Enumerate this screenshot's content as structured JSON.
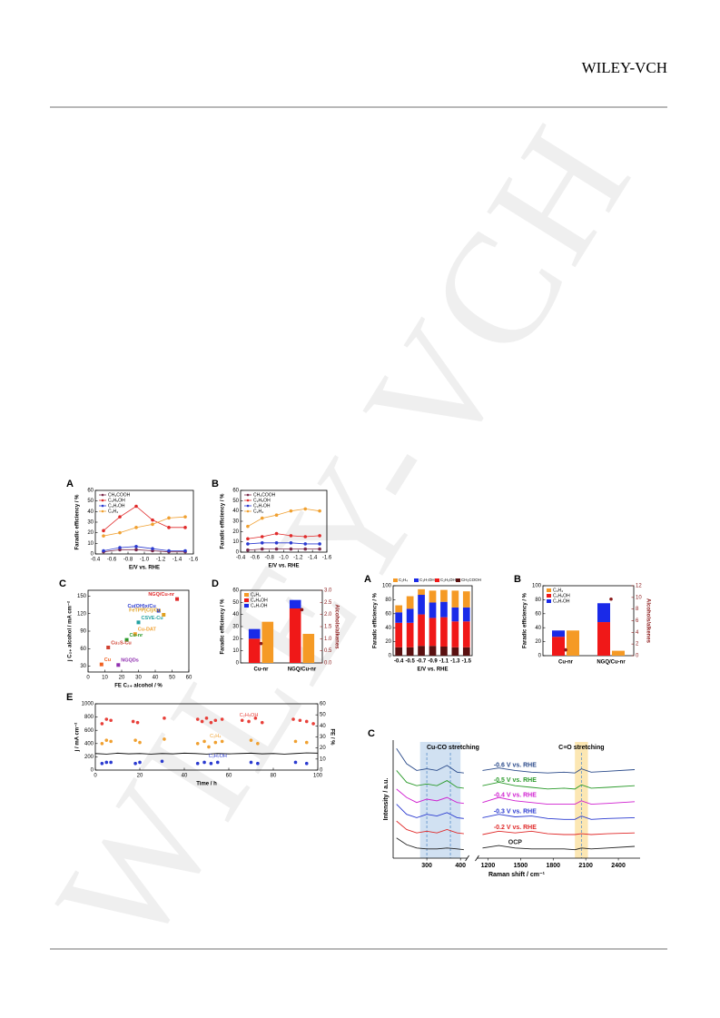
{
  "header": {
    "publisher": "WILEY-VCH"
  },
  "watermark": "WILEY-VCH",
  "chart_data": [
    {
      "panel": "A",
      "type": "line",
      "xlabel": "E/V vs. RHE",
      "ylabel": "Faradic efficiency / %",
      "xlim": [
        -0.4,
        -1.6
      ],
      "xticks": [
        -0.4,
        -0.6,
        -0.8,
        {
          "value": -1,
          "label": "-1.0"
        },
        -1.2,
        -1.4,
        -1.6
      ],
      "ylim": [
        0,
        60
      ],
      "yticks": [
        0,
        10,
        20,
        30,
        40,
        50,
        60
      ],
      "legend": "upper left",
      "x": [
        -0.5,
        -0.7,
        -0.9,
        -1.1,
        -1.3,
        -1.5
      ],
      "series": [
        {
          "name": "CH₃COOH",
          "color": "#7a2a4a",
          "style": "line-markers",
          "values": [
            2,
            4,
            4,
            3,
            2,
            2
          ]
        },
        {
          "name": "C₂H₅OH",
          "color": "#e02a2a",
          "style": "line-markers",
          "values": [
            22,
            35,
            45,
            32,
            25,
            25
          ]
        },
        {
          "name": "C₃H₇OH",
          "color": "#2a3ad0",
          "style": "line-markers",
          "values": [
            3,
            6,
            7,
            5,
            3,
            3
          ]
        },
        {
          "name": "C₂H₄",
          "color": "#f0a030",
          "style": "line-markers",
          "values": [
            17,
            20,
            25,
            28,
            34,
            35
          ]
        }
      ]
    },
    {
      "panel": "B",
      "type": "line",
      "xlabel": "E/V vs. RHE",
      "ylabel": "Faradic efficiency / %",
      "xlim": [
        -0.4,
        -1.6
      ],
      "xticks": [
        -0.4,
        -0.6,
        -0.8,
        {
          "value": -1,
          "label": "-1.0"
        },
        -1.2,
        -1.4,
        -1.6
      ],
      "ylim": [
        0,
        60
      ],
      "yticks": [
        0,
        10,
        20,
        30,
        40,
        50,
        60
      ],
      "legend": "upper left",
      "x": [
        -0.5,
        -0.7,
        -0.9,
        -1.1,
        -1.3,
        -1.5
      ],
      "series": [
        {
          "name": "CH₃COOH",
          "color": "#7a2a4a",
          "style": "line-markers",
          "values": [
            2,
            3,
            3,
            3,
            3,
            3
          ]
        },
        {
          "name": "C₂H₅OH",
          "color": "#e02a2a",
          "style": "line-markers",
          "values": [
            13,
            15,
            18,
            16,
            15,
            16
          ]
        },
        {
          "name": "C₃H₇OH",
          "color": "#2a3ad0",
          "style": "line-markers",
          "values": [
            8,
            9,
            9,
            9,
            8,
            8
          ]
        },
        {
          "name": "C₂H₄",
          "color": "#f0a030",
          "style": "line-markers",
          "values": [
            25,
            33,
            36,
            40,
            42,
            40
          ]
        }
      ]
    },
    {
      "panel": "C",
      "type": "scatter",
      "xlabel": "FE C₂₊ alcohol / %",
      "ylabel": "j C₂₊ alcohol / mA cm⁻²",
      "xlim": [
        0,
        60
      ],
      "xticks": [
        0,
        10,
        20,
        30,
        40,
        50,
        60
      ],
      "ylim": [
        20,
        160
      ],
      "yticks": [
        30,
        60,
        90,
        120,
        150
      ],
      "x": [
        53,
        42,
        45,
        30,
        28,
        23,
        12,
        8,
        18
      ],
      "values": [
        145,
        125,
        118,
        105,
        85,
        75,
        62,
        33,
        32
      ],
      "point_labels": [
        "NGQ/Cu-nr",
        "Cu(OH)x/Cu",
        "FeTPP[Cl]/Cu",
        "CSVE-Cu",
        "Cu-DAT",
        "Cu-nr",
        "Cu₂S-Cu",
        "Cu",
        "NGQDs"
      ],
      "colors": [
        "#e02a2a",
        "#2a3ad0",
        "#e0a020",
        "#20a0a0",
        "#f0a030",
        "#2a9a2a",
        "#d04030",
        "#f06020",
        "#9030b0"
      ]
    },
    {
      "panel": "D",
      "type": "bar",
      "ylabel": "Faradic efficiency / %",
      "y2label": "Alcohols/alkenes",
      "y2color": "#8b1a1a",
      "categories": [
        "Cu-nr",
        "NGQ/Cu-nr"
      ],
      "ylim": [
        0,
        60
      ],
      "yticks": [
        0,
        10,
        20,
        30,
        40,
        50,
        60
      ],
      "y2lim": [
        0,
        3
      ],
      "y2ticks": [
        {
          "value": 0,
          "label": "0.0"
        },
        0.5,
        {
          "value": 1,
          "label": "1.0"
        },
        1.5,
        {
          "value": 2,
          "label": "2.0"
        },
        2.5,
        {
          "value": 3,
          "label": "3.0"
        }
      ],
      "series": [
        {
          "name": "C₂H₄",
          "color": "#f59a25",
          "bar_group": 1,
          "values": [
            34,
            24
          ]
        },
        {
          "name": "C₂H₅OH",
          "color": "#f01818",
          "bar_group": 0,
          "values": [
            20,
            45
          ]
        },
        {
          "name": "C₃H₇OH",
          "color": "#1a2ae8",
          "bar_group": 0,
          "values": [
            8,
            7
          ]
        },
        {
          "color": "#8b1a1a",
          "axis": "y2",
          "values": [
            0.8,
            2.2
          ]
        }
      ]
    },
    {
      "panel": "E",
      "type": "line",
      "xlabel": "Time / h",
      "ylabel": "j / mA cm⁻²",
      "y2label": "FE / %",
      "xlim": [
        0,
        100
      ],
      "xticks": [
        0,
        20,
        40,
        60,
        80,
        100
      ],
      "ylim": [
        0,
        1000
      ],
      "yticks": [
        0,
        200,
        400,
        600,
        800,
        1000
      ],
      "y2lim": [
        0,
        60
      ],
      "y2ticks": [
        0,
        10,
        20,
        30,
        40,
        50,
        60
      ],
      "legend": "inline",
      "series": [
        {
          "color": "#111111",
          "style": "line",
          "x": [
            0,
            5,
            10,
            15,
            20,
            25,
            30,
            35,
            40,
            45,
            50,
            55,
            60,
            65,
            70,
            75,
            80,
            85,
            90,
            95,
            100
          ],
          "values": [
            250,
            240,
            255,
            245,
            250,
            240,
            250,
            245,
            255,
            250,
            240,
            250,
            245,
            250,
            255,
            245,
            250,
            240,
            250,
            260,
            255
          ]
        },
        {
          "name": "C₂H₅OH",
          "color": "#e8403a",
          "style": "markers",
          "axis": "y2",
          "x": [
            3,
            5,
            7,
            17,
            19,
            31,
            46,
            48,
            50,
            52,
            54,
            57,
            66,
            69,
            72,
            75,
            89,
            92,
            95,
            98
          ],
          "values": [
            42,
            46,
            45,
            44,
            43,
            47,
            46,
            44,
            47,
            43,
            45,
            46,
            45,
            44,
            47,
            43,
            46,
            45,
            44,
            42
          ]
        },
        {
          "name": "C₂H₄",
          "color": "#f0a030",
          "style": "markers",
          "axis": "y2",
          "x": [
            3,
            5,
            7,
            18,
            20,
            31,
            46,
            49,
            51,
            54,
            57,
            70,
            73,
            90,
            95
          ],
          "values": [
            24,
            27,
            26,
            27,
            25,
            28,
            24,
            26,
            21,
            25,
            26,
            27,
            24,
            26,
            25
          ]
        },
        {
          "name": "C₃H₇OH",
          "color": "#2a3ad0",
          "style": "markers",
          "axis": "y2",
          "x": [
            3,
            5,
            7,
            18,
            20,
            30,
            46,
            49,
            52,
            55,
            70,
            73,
            90,
            95
          ],
          "values": [
            6,
            7,
            7,
            6,
            7,
            8,
            6,
            7,
            6,
            7,
            7,
            6,
            7,
            6
          ]
        }
      ]
    },
    {
      "panel": "A",
      "type": "stacked_bar",
      "xlabel": "E/V vs. RHE",
      "ylabel": "Faradic efficiency / %",
      "categories": [
        "-0.4",
        "-0.5",
        "-0.7",
        "-0.9",
        "-1.1",
        "-1.3",
        "-1.5"
      ],
      "ylim": [
        0,
        100
      ],
      "yticks": [
        0,
        20,
        40,
        60,
        80,
        100
      ],
      "legend": "top",
      "series": [
        {
          "name": "C₂H₄",
          "color": "#f59a25",
          "values": [
            10,
            18,
            8,
            17,
            17,
            24,
            23
          ]
        },
        {
          "name": "C₃H₇OH",
          "color": "#1a2ae8",
          "values": [
            15,
            20,
            28,
            22,
            22,
            20,
            20
          ]
        },
        {
          "name": "C₂H₅OH",
          "color": "#f01818",
          "values": [
            35,
            35,
            45,
            40,
            42,
            37,
            37
          ]
        },
        {
          "name": "CH₃COOH",
          "color": "#5a1010",
          "values": [
            12,
            12,
            14,
            14,
            13,
            12,
            12
          ]
        }
      ]
    },
    {
      "panel": "B",
      "type": "bar",
      "ylabel": "Faradic efficiency / %",
      "y2label": "Alcohols/alkenes",
      "y2color": "#8b1a1a",
      "categories": [
        "Cu-nr",
        "NGQ/Cu-nr"
      ],
      "ylim": [
        0,
        100
      ],
      "yticks": [
        0,
        20,
        40,
        60,
        80,
        100
      ],
      "y2lim": [
        0,
        12
      ],
      "y2ticks": [
        0,
        2,
        4,
        6,
        8,
        10,
        12
      ],
      "series": [
        {
          "name": "C₂H₄",
          "color": "#f59a25",
          "bar_group": 1,
          "values": [
            36,
            7
          ]
        },
        {
          "name": "C₂H₅OH",
          "color": "#f01818",
          "bar_group": 0,
          "values": [
            27,
            48
          ]
        },
        {
          "name": "C₃H₇OH",
          "color": "#1a2ae8",
          "bar_group": 0,
          "values": [
            9,
            27
          ]
        },
        {
          "color": "#8b1a1a",
          "axis": "y2",
          "values": [
            1,
            9.7
          ]
        }
      ]
    },
    {
      "panel": "C",
      "type": "spectra",
      "xlabel": "Raman shift / cm⁻¹",
      "ylabel": "Intensity / a.u.",
      "xlim": [
        200,
        2600
      ],
      "xbreak": [
        420,
        1100
      ],
      "xticks": [
        300,
        400,
        1200,
        1500,
        1800,
        2100,
        2400
      ],
      "ylim": [
        0,
        7
      ],
      "bands": [
        {
          "from": 280,
          "to": 400,
          "color": "#c9dcf0",
          "label": "Cu-CO stretching"
        },
        {
          "from": 2000,
          "to": 2120,
          "color": "#fbe3a6",
          "label": "C≡O stretching"
        }
      ],
      "dashes": [
        300,
        370,
        2060
      ],
      "x": [
        210,
        240,
        270,
        300,
        330,
        360,
        390,
        410,
        1150,
        1300,
        1450,
        1600,
        1750,
        1900,
        2000,
        2060,
        2150,
        2300,
        2550
      ],
      "series": [
        {
          "name": "OCP",
          "color": "#222222",
          "values": [
            1.2,
            0.8,
            0.6,
            0.55,
            0.55,
            0.6,
            0.55,
            0.5,
            0.6,
            0.75,
            0.6,
            0.55,
            0.55,
            0.55,
            0.5,
            0.6,
            0.55,
            0.6,
            0.7
          ]
        },
        {
          "name": "-0.2 V vs. RHE",
          "color": "#e02a2a",
          "values": [
            2.2,
            1.7,
            1.5,
            1.6,
            1.5,
            1.7,
            1.5,
            1.45,
            1.4,
            1.6,
            1.5,
            1.6,
            1.45,
            1.4,
            1.4,
            1.45,
            1.4,
            1.45,
            1.5
          ]
        },
        {
          "name": "-0.3 V vs. RHE",
          "color": "#2a3ad0",
          "values": [
            3.2,
            2.6,
            2.4,
            2.6,
            2.5,
            2.7,
            2.4,
            2.35,
            2.4,
            2.6,
            2.45,
            2.5,
            2.35,
            2.3,
            2.3,
            2.5,
            2.3,
            2.35,
            2.4
          ]
        },
        {
          "name": "-0.4 V vs. RHE",
          "color": "#d020d0",
          "values": [
            4.1,
            3.6,
            3.3,
            3.5,
            3.4,
            3.6,
            3.3,
            3.25,
            3.3,
            3.6,
            3.4,
            3.3,
            3.2,
            3.2,
            3.2,
            3.4,
            3.2,
            3.25,
            3.35
          ]
        },
        {
          "name": "-0.5 V vs. RHE",
          "color": "#2a9a2a",
          "values": [
            5.2,
            4.5,
            4.3,
            4.4,
            4.3,
            4.6,
            4.2,
            4.15,
            4.3,
            4.5,
            4.3,
            4.2,
            4.1,
            4.15,
            4.1,
            4.35,
            4.15,
            4.2,
            4.3
          ]
        },
        {
          "name": "-0.6 V vs. RHE",
          "color": "#2a4a8a",
          "values": [
            6.5,
            5.6,
            5.2,
            5.3,
            5.2,
            5.5,
            5.1,
            5.05,
            5.2,
            5.35,
            5.2,
            5.1,
            5.05,
            5.1,
            5.05,
            5.3,
            5.1,
            5.15,
            5.25
          ]
        }
      ]
    }
  ]
}
